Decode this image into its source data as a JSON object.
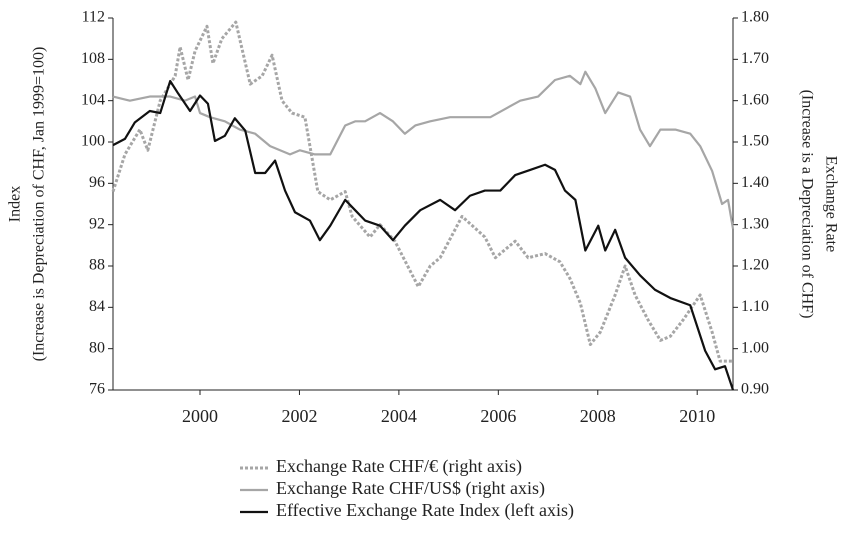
{
  "chart_data": {
    "type": "line",
    "y_label_lines": [
      "Index",
      "(Increase is Depreciation of CHF, Jan 1999=100)"
    ],
    "y2_label_lines": [
      "Exchange Rate",
      "(Increase is a Depreciation of CHF)"
    ],
    "xlim": [
      1998.25,
      2010.72
    ],
    "xticks": [
      2000,
      2002,
      2004,
      2006,
      2008,
      2010
    ],
    "ylim": [
      76,
      112
    ],
    "yticks": [
      76,
      80,
      84,
      88,
      92,
      96,
      100,
      104,
      108,
      112
    ],
    "y2lim": [
      0.9,
      1.8
    ],
    "y2ticks": [
      {
        "value": 0.9,
        "label": "0.90"
      },
      {
        "value": 1.0,
        "label": "1.00"
      },
      {
        "value": 1.1,
        "label": "1.10"
      },
      {
        "value": 1.2,
        "label": "1.20"
      },
      {
        "value": 1.3,
        "label": "1.30"
      },
      {
        "value": 1.4,
        "label": "1.40"
      },
      {
        "value": 1.5,
        "label": "1.50"
      },
      {
        "value": 1.6,
        "label": "1.60"
      },
      {
        "value": 1.7,
        "label": "1.70"
      },
      {
        "value": 1.8,
        "label": "1.80"
      }
    ],
    "grid": false,
    "legend": "bottom",
    "series": [
      {
        "name": "Exchange Rate CHF/€ (right axis)",
        "color": "#a6a6a6",
        "dashed": true,
        "axis": "y2",
        "x": [
          1998.25,
          1998.49,
          1998.79,
          1998.95,
          1999.2,
          1999.5,
          1999.6,
          1999.76,
          1999.9,
          2000.14,
          2000.26,
          2000.44,
          2000.72,
          2001.01,
          2001.25,
          2001.45,
          2001.65,
          2001.85,
          2002.11,
          2002.37,
          2002.62,
          2002.92,
          2003.06,
          2003.42,
          2003.62,
          2003.92,
          2004.39,
          2004.63,
          2004.83,
          2005.27,
          2005.73,
          2005.94,
          2006.34,
          2006.6,
          2006.94,
          2007.24,
          2007.44,
          2007.65,
          2007.85,
          2008.05,
          2008.35,
          2008.55,
          2008.75,
          2009.01,
          2009.26,
          2009.46,
          2009.72,
          2010.06,
          2010.3,
          2010.46,
          2010.72
        ],
        "values": [
          1.38,
          1.47,
          1.53,
          1.48,
          1.6,
          1.66,
          1.73,
          1.65,
          1.72,
          1.78,
          1.69,
          1.75,
          1.79,
          1.64,
          1.66,
          1.71,
          1.6,
          1.57,
          1.56,
          1.38,
          1.36,
          1.38,
          1.32,
          1.27,
          1.3,
          1.26,
          1.15,
          1.2,
          1.22,
          1.32,
          1.27,
          1.22,
          1.26,
          1.22,
          1.23,
          1.21,
          1.17,
          1.11,
          1.01,
          1.04,
          1.13,
          1.2,
          1.13,
          1.07,
          1.02,
          1.03,
          1.07,
          1.13,
          1.04,
          0.97,
          0.97
        ]
      },
      {
        "name": "Exchange Rate CHF/US$ (right axis)",
        "color": "#a6a6a6",
        "dashed": false,
        "axis": "y2",
        "x": [
          1998.25,
          1998.59,
          1998.99,
          1999.4,
          1999.7,
          1999.9,
          2000.0,
          2000.2,
          2000.5,
          2000.8,
          2001.11,
          2001.41,
          2001.81,
          2002.01,
          2002.31,
          2002.62,
          2002.92,
          2003.12,
          2003.32,
          2003.62,
          2003.88,
          2004.12,
          2004.33,
          2004.63,
          2005.03,
          2005.43,
          2005.84,
          2006.14,
          2006.44,
          2006.8,
          2007.14,
          2007.44,
          2007.65,
          2007.75,
          2007.95,
          2008.15,
          2008.41,
          2008.65,
          2008.85,
          2009.05,
          2009.26,
          2009.56,
          2009.86,
          2010.06,
          2010.3,
          2010.5,
          2010.62,
          2010.72
        ],
        "values": [
          1.61,
          1.6,
          1.61,
          1.61,
          1.6,
          1.61,
          1.57,
          1.56,
          1.55,
          1.53,
          1.52,
          1.49,
          1.47,
          1.48,
          1.47,
          1.47,
          1.54,
          1.55,
          1.55,
          1.57,
          1.55,
          1.52,
          1.54,
          1.55,
          1.56,
          1.56,
          1.56,
          1.58,
          1.6,
          1.61,
          1.65,
          1.66,
          1.64,
          1.67,
          1.63,
          1.57,
          1.62,
          1.61,
          1.53,
          1.49,
          1.53,
          1.53,
          1.52,
          1.49,
          1.43,
          1.35,
          1.36,
          1.29
        ]
      },
      {
        "name": "Effective Exchange Rate Index (left axis)",
        "color": "#111111",
        "dashed": false,
        "axis": "y",
        "x": [
          1998.25,
          1998.49,
          1998.69,
          1998.99,
          1999.2,
          1999.4,
          1999.56,
          1999.8,
          2000.0,
          2000.16,
          2000.3,
          2000.5,
          2000.7,
          2000.91,
          2001.11,
          2001.31,
          2001.51,
          2001.71,
          2001.91,
          2002.21,
          2002.41,
          2002.62,
          2002.92,
          2003.12,
          2003.32,
          2003.62,
          2003.88,
          2004.12,
          2004.43,
          2004.83,
          2005.13,
          2005.43,
          2005.73,
          2006.04,
          2006.34,
          2006.64,
          2006.94,
          2007.14,
          2007.34,
          2007.55,
          2007.75,
          2008.01,
          2008.15,
          2008.35,
          2008.55,
          2008.85,
          2009.15,
          2009.46,
          2009.86,
          2010.16,
          2010.36,
          2010.56,
          2010.72
        ],
        "values": [
          99.7,
          100.3,
          101.9,
          103,
          102.8,
          105.9,
          104.7,
          103,
          104.5,
          103.7,
          100.1,
          100.6,
          102.3,
          101.1,
          97,
          97,
          98.2,
          95.3,
          93.2,
          92.4,
          90.5,
          91.9,
          94.4,
          93.4,
          92.4,
          91.9,
          90.5,
          91.9,
          93.4,
          94.4,
          93.4,
          94.8,
          95.3,
          95.3,
          96.8,
          97.3,
          97.8,
          97.3,
          95.3,
          94.4,
          89.5,
          91.9,
          89.5,
          91.5,
          88.8,
          87.1,
          85.7,
          84.9,
          84.2,
          79.8,
          78,
          78.3,
          76
        ]
      }
    ]
  }
}
